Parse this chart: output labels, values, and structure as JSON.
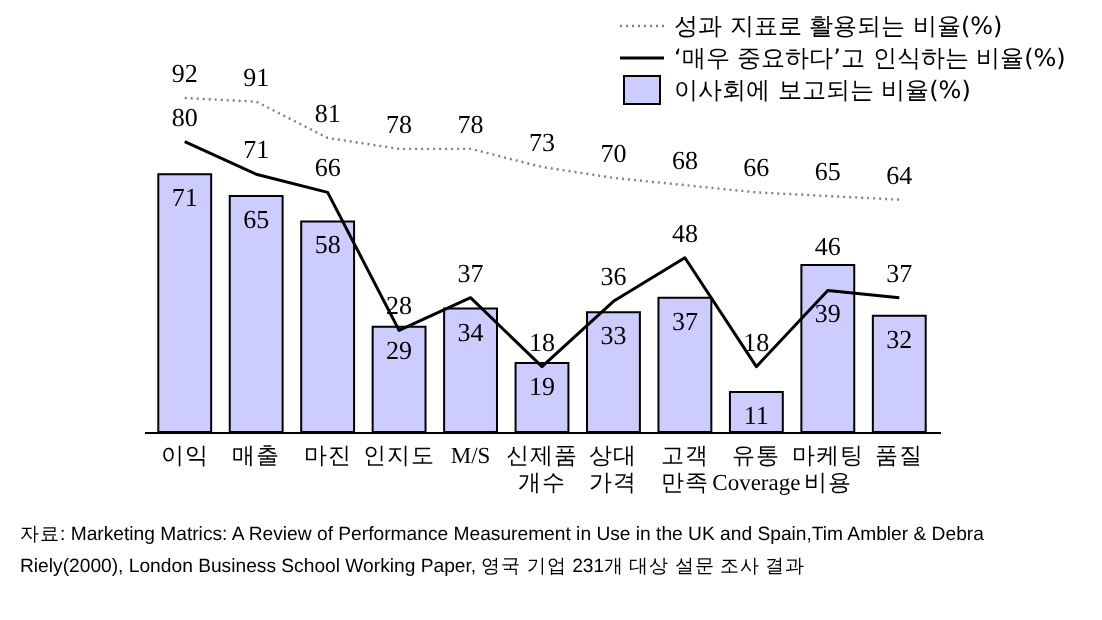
{
  "chart_data": {
    "type": "bar",
    "categories": [
      "이익",
      "매출",
      "마진",
      "인지도",
      "M/S",
      "신제품\n개수",
      "상대\n가격",
      "고객\n만족",
      "유통\nCoverage",
      "마케팅\n비용",
      "품질"
    ],
    "series": [
      {
        "name": "성과 지표로 활용되는 비율(%)",
        "type": "line",
        "line_style": "dotted",
        "color": "#808080",
        "values": [
          92,
          91,
          81,
          78,
          78,
          73,
          70,
          68,
          66,
          65,
          64
        ]
      },
      {
        "name": "‘매우 중요하다’고 인식하는 비율(%)",
        "type": "line",
        "line_style": "solid",
        "color": "#000000",
        "values": [
          80,
          71,
          66,
          28,
          37,
          18,
          36,
          48,
          18,
          39,
          37
        ]
      },
      {
        "name": "이사회에 보고되는 비율(%)",
        "type": "bar",
        "color": "#ccccff",
        "values": [
          71,
          65,
          58,
          29,
          34,
          19,
          33,
          37,
          11,
          46,
          32
        ]
      }
    ],
    "data_labels": true,
    "legend": "top right",
    "tick_labels": "x",
    "marker": "none",
    "annotations": [
      "자료: Marketing Matrics: A Review of Performance Measurement in Use in the UK and Spain,Tim Ambler & Debra\n       Riely(2000), London Business School Working Paper,  영국 기업 231개 대상 설문 조사 결과"
    ]
  }
}
